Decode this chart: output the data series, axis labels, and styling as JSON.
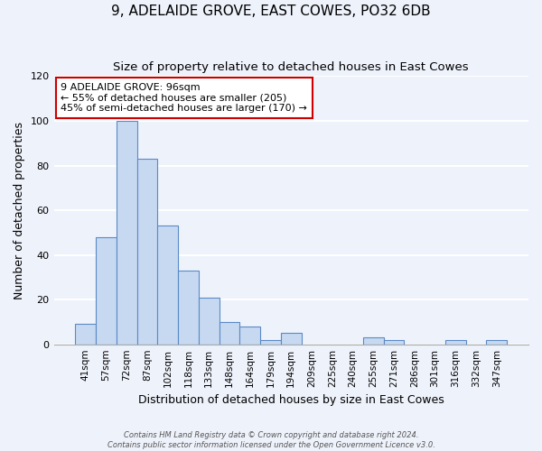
{
  "title": "9, ADELAIDE GROVE, EAST COWES, PO32 6DB",
  "subtitle": "Size of property relative to detached houses in East Cowes",
  "xlabel": "Distribution of detached houses by size in East Cowes",
  "ylabel": "Number of detached properties",
  "bar_labels": [
    "41sqm",
    "57sqm",
    "72sqm",
    "87sqm",
    "102sqm",
    "118sqm",
    "133sqm",
    "148sqm",
    "164sqm",
    "179sqm",
    "194sqm",
    "209sqm",
    "225sqm",
    "240sqm",
    "255sqm",
    "271sqm",
    "286sqm",
    "301sqm",
    "316sqm",
    "332sqm",
    "347sqm"
  ],
  "bar_values": [
    9,
    48,
    100,
    83,
    53,
    33,
    21,
    10,
    8,
    2,
    5,
    0,
    0,
    0,
    3,
    2,
    0,
    0,
    2,
    0,
    2
  ],
  "bar_color": "#c6d9f1",
  "bar_edge_color": "#5a8ac6",
  "ylim": [
    0,
    120
  ],
  "yticks": [
    0,
    20,
    40,
    60,
    80,
    100,
    120
  ],
  "annotation_title": "9 ADELAIDE GROVE: 96sqm",
  "annotation_line1": "← 55% of detached houses are smaller (205)",
  "annotation_line2": "45% of semi-detached houses are larger (170) →",
  "annotation_box_color": "#ffffff",
  "annotation_box_edge_color": "#cc0000",
  "footer_line1": "Contains HM Land Registry data © Crown copyright and database right 2024.",
  "footer_line2": "Contains public sector information licensed under the Open Government Licence v3.0.",
  "background_color": "#eef2fb",
  "grid_color": "#ffffff",
  "title_fontsize": 11,
  "subtitle_fontsize": 9.5,
  "label_fontsize": 9,
  "tick_fontsize": 7.5
}
